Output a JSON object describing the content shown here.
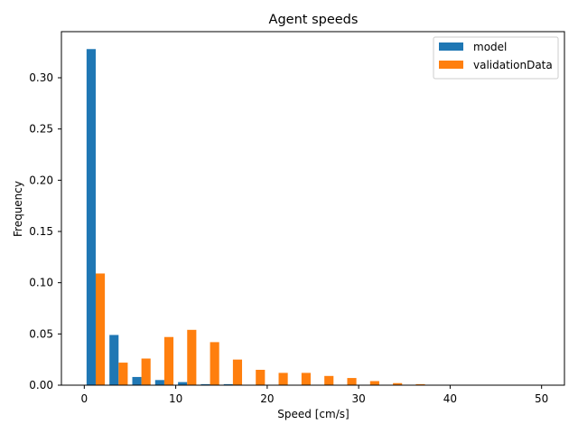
{
  "chart_data": {
    "type": "bar",
    "title": "Agent speeds",
    "xlabel": "Speed [cm/s]",
    "ylabel": "Frequency",
    "xlim": [
      -2.5,
      52.5
    ],
    "ylim": [
      0,
      0.345
    ],
    "xticks": [
      0,
      10,
      20,
      30,
      40,
      50
    ],
    "yticks": [
      0.0,
      0.05,
      0.1,
      0.15,
      0.2,
      0.25,
      0.3
    ],
    "ytick_labels": [
      "0.00",
      "0.05",
      "0.10",
      "0.15",
      "0.20",
      "0.25",
      "0.30"
    ],
    "grid": false,
    "legend_position": "top-right",
    "bin_width": 2.5,
    "bin_starts": [
      0,
      2.5,
      5,
      7.5,
      10,
      12.5,
      15,
      17.5,
      20,
      22.5,
      25,
      27.5,
      30,
      32.5,
      35,
      37.5,
      40,
      42.5,
      45,
      47.5
    ],
    "series": [
      {
        "name": "model",
        "color": "#1f77b4",
        "values": [
          0.328,
          0.049,
          0.008,
          0.005,
          0.003,
          0.001,
          0.001,
          0,
          0,
          0,
          0,
          0,
          0,
          0,
          0,
          0,
          0,
          0,
          0,
          0
        ]
      },
      {
        "name": "validationData",
        "color": "#ff7f0e",
        "values": [
          0.109,
          0.022,
          0.026,
          0.047,
          0.054,
          0.042,
          0.025,
          0.015,
          0.012,
          0.012,
          0.009,
          0.007,
          0.004,
          0.002,
          0.001,
          0.0003,
          0,
          0,
          0,
          0
        ]
      }
    ]
  }
}
